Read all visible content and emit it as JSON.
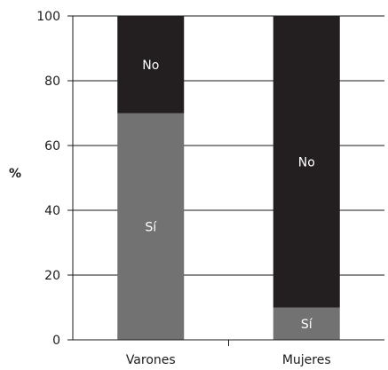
{
  "chart_data": {
    "type": "bar",
    "stacked": true,
    "categories": [
      "Varones",
      "Mujeres"
    ],
    "series": [
      {
        "name": "Sí",
        "values": [
          70,
          10
        ],
        "color": "#727272"
      },
      {
        "name": "No",
        "values": [
          30,
          90
        ],
        "color": "#231f20"
      }
    ],
    "ylabel": "%",
    "ylim": [
      0,
      100
    ],
    "yticks": [
      0,
      20,
      40,
      60,
      80,
      100
    ],
    "grid": true
  }
}
